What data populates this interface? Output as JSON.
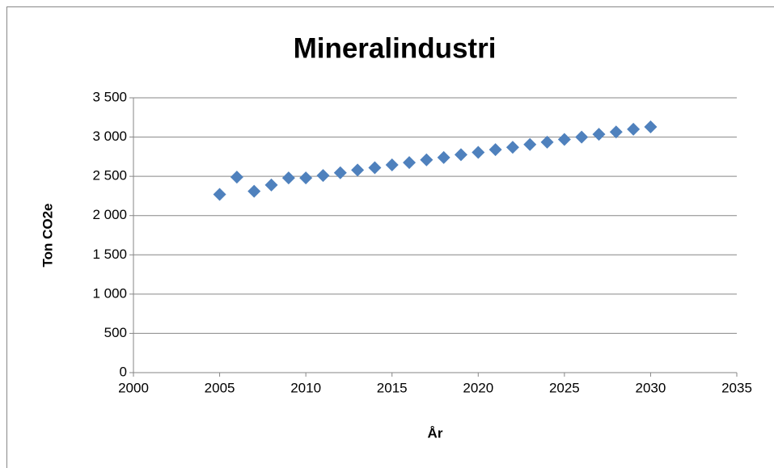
{
  "chart_data": {
    "type": "scatter",
    "title": "Mineralindustri",
    "xlabel": "År",
    "ylabel": "Ton CO2e",
    "series": [
      {
        "name": "Mineralindustri",
        "color": "#4f81bd",
        "x": [
          2005,
          2006,
          2007,
          2008,
          2009,
          2010,
          2011,
          2012,
          2013,
          2014,
          2015,
          2016,
          2017,
          2018,
          2019,
          2020,
          2021,
          2022,
          2023,
          2024,
          2025,
          2026,
          2027,
          2028,
          2029,
          2030
        ],
        "values": [
          2270,
          2490,
          2310,
          2390,
          2480,
          2480,
          2510,
          2545,
          2580,
          2610,
          2645,
          2675,
          2710,
          2740,
          2775,
          2805,
          2840,
          2870,
          2905,
          2935,
          2970,
          3000,
          3035,
          3065,
          3100,
          3130
        ]
      }
    ],
    "xlim": [
      2000,
      2035
    ],
    "xticks": [
      2000,
      2005,
      2010,
      2015,
      2020,
      2025,
      2030,
      2035
    ],
    "ylim": [
      0,
      3500
    ],
    "yticks": [
      0,
      500,
      {
        "value": 1000,
        "label": "1 000"
      },
      {
        "value": 1500,
        "label": "1 500"
      },
      {
        "value": 2000,
        "label": "2 000"
      },
      {
        "value": 2500,
        "label": "2 500"
      },
      {
        "value": 3000,
        "label": "3 000"
      },
      {
        "value": 3500,
        "label": "3 500"
      }
    ],
    "grid": true
  }
}
